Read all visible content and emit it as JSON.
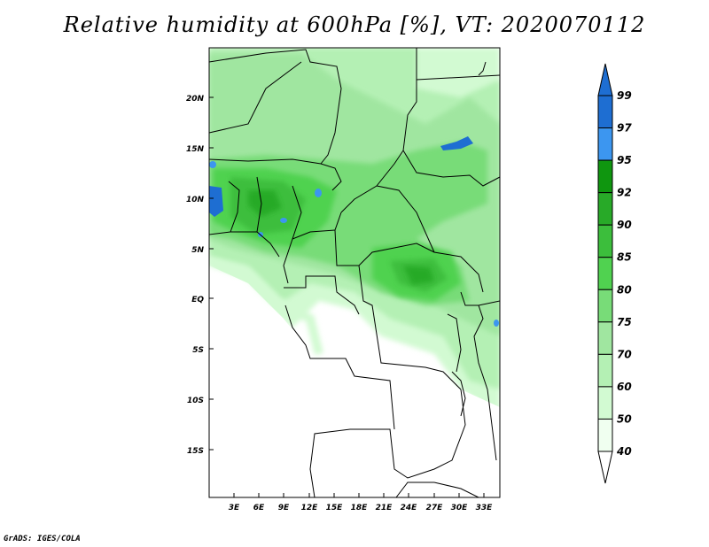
{
  "title": "Relative humidity at 600hPa [%], VT: 2020070112",
  "footer": "GrADS: IGES/COLA",
  "map": {
    "lat_labels": [
      "20N",
      "15N",
      "10N",
      "5N",
      "EQ",
      "5S",
      "10S",
      "15S"
    ],
    "lon_labels": [
      "3E",
      "6E",
      "9E",
      "12E",
      "15E",
      "18E",
      "21E",
      "24E",
      "27E",
      "30E",
      "33E"
    ]
  },
  "colorbar": {
    "levels": [
      "99",
      "97",
      "95",
      "92",
      "90",
      "85",
      "80",
      "75",
      "70",
      "60",
      "50",
      "40"
    ],
    "colors": [
      "#1e6ed2",
      "#3c96f0",
      "#0f960f",
      "#28aa28",
      "#3cbe3c",
      "#50d250",
      "#78dc78",
      "#a0e6a0",
      "#b4f0b4",
      "#d2fad2",
      "#f0fff0"
    ]
  }
}
